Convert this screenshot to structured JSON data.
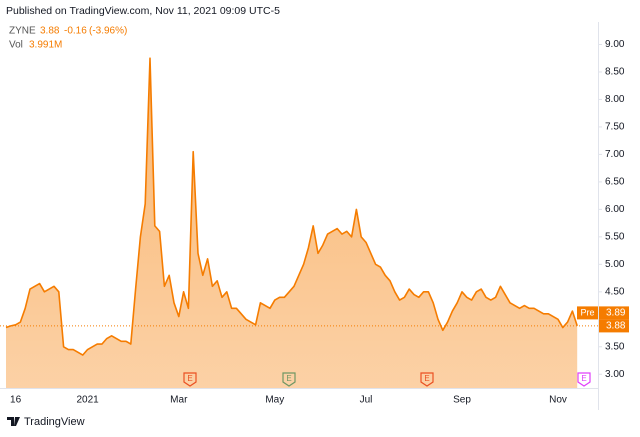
{
  "header": "Published on TradingView.com, Nov 11, 2021 09:09 UTC-5",
  "footer": "TradingView",
  "chart_data": {
    "type": "area",
    "legend": {
      "symbol": "ZYNE",
      "price": "3.88",
      "change": "-0.16",
      "change_pct": "(-3.96%)",
      "vol_label": "Vol",
      "vol_value": "3.991M"
    },
    "color": "#f57c00",
    "categories": [
      null,
      null,
      "16",
      null,
      null,
      null,
      null,
      null,
      null,
      null,
      null,
      null,
      null,
      null,
      null,
      null,
      null,
      "2021",
      null,
      null,
      null,
      null,
      null,
      null,
      null,
      null,
      null,
      null,
      null,
      null,
      null,
      null,
      null,
      null,
      null,
      null,
      "Mar",
      null,
      null,
      null,
      null,
      null,
      null,
      null,
      null,
      null,
      null,
      null,
      null,
      null,
      null,
      null,
      null,
      null,
      null,
      null,
      "May",
      null,
      null,
      null,
      null,
      null,
      null,
      null,
      null,
      null,
      null,
      null,
      null,
      null,
      null,
      null,
      null,
      null,
      null,
      "Jul",
      null,
      null,
      null,
      null,
      null,
      null,
      null,
      null,
      null,
      null,
      null,
      null,
      null,
      null,
      null,
      null,
      null,
      null,
      null,
      "Sep",
      null,
      null,
      null,
      null,
      null,
      null,
      null,
      null,
      null,
      null,
      null,
      null,
      null,
      null,
      null,
      null,
      null,
      null,
      null,
      "Nov",
      null,
      null,
      null,
      null
    ],
    "values": [
      3.85,
      3.88,
      3.9,
      3.95,
      4.2,
      4.55,
      4.6,
      4.65,
      4.5,
      4.55,
      4.6,
      4.5,
      3.5,
      3.45,
      3.45,
      3.4,
      3.35,
      3.45,
      3.5,
      3.55,
      3.55,
      3.65,
      3.7,
      3.65,
      3.6,
      3.6,
      3.55,
      4.55,
      5.5,
      6.1,
      8.75,
      5.7,
      5.6,
      4.6,
      4.8,
      4.3,
      4.05,
      4.5,
      4.2,
      7.05,
      5.2,
      4.8,
      5.1,
      4.6,
      4.7,
      4.4,
      4.5,
      4.2,
      4.2,
      4.1,
      4.0,
      3.95,
      3.9,
      4.3,
      4.25,
      4.2,
      4.35,
      4.4,
      4.4,
      4.5,
      4.6,
      4.8,
      5.0,
      5.3,
      5.7,
      5.2,
      5.35,
      5.55,
      5.6,
      5.65,
      5.55,
      5.6,
      5.5,
      6.0,
      5.5,
      5.4,
      5.2,
      5.0,
      4.95,
      4.8,
      4.7,
      4.5,
      4.35,
      4.4,
      4.55,
      4.45,
      4.4,
      4.5,
      4.5,
      4.3,
      4.0,
      3.8,
      3.95,
      4.15,
      4.3,
      4.5,
      4.4,
      4.35,
      4.5,
      4.55,
      4.4,
      4.35,
      4.4,
      4.6,
      4.45,
      4.3,
      4.25,
      4.2,
      4.25,
      4.2,
      4.2,
      4.15,
      4.1,
      4.1,
      4.05,
      4.0,
      3.85,
      3.95,
      4.15,
      3.88
    ],
    "last_price": 3.88,
    "pre_label": "Pre",
    "pre_price": 3.89,
    "earnings_label": "E",
    "ylim": [
      2.75,
      9.3
    ],
    "yticks": [
      {
        "value": 3,
        "label": "3.00"
      },
      {
        "value": 3.5,
        "label": "3.50"
      },
      {
        "value": 4.5,
        "label": "4.50"
      },
      {
        "value": 5,
        "label": "5.00"
      },
      {
        "value": 5.5,
        "label": "5.50"
      },
      {
        "value": 6,
        "label": "6.00"
      },
      {
        "value": 6.5,
        "label": "6.50"
      },
      {
        "value": 7,
        "label": "7.00"
      },
      {
        "value": 7.5,
        "label": "7.50"
      },
      {
        "value": 8,
        "label": "8.00"
      },
      {
        "value": 8.5,
        "label": "8.50"
      },
      {
        "value": 9,
        "label": "9.00"
      }
    ]
  }
}
